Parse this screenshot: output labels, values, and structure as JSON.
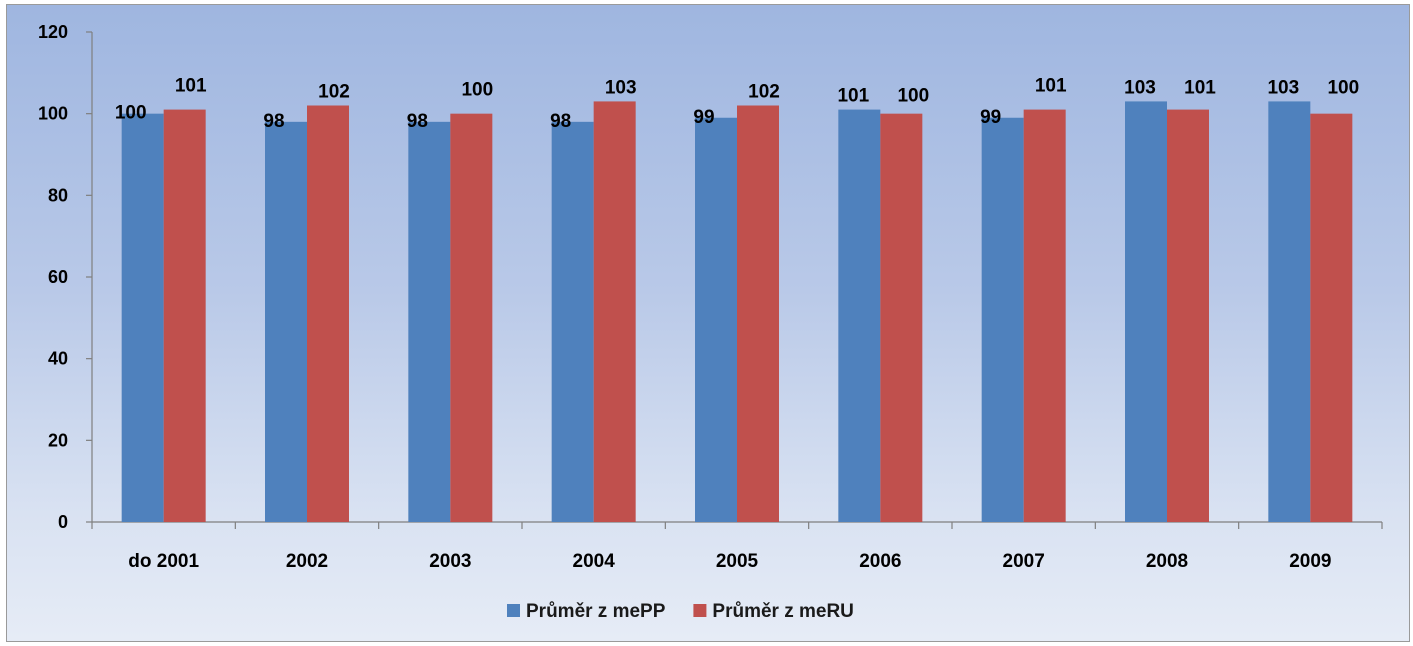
{
  "chart_data": {
    "type": "bar",
    "categories": [
      "do 2001",
      "2002",
      "2003",
      "2004",
      "2005",
      "2006",
      "2007",
      "2008",
      "2009"
    ],
    "series": [
      {
        "name": "Průměr z mePP",
        "values": [
          100,
          98,
          98,
          98,
          99,
          101,
          99,
          103,
          103
        ],
        "color": "#4f81bd"
      },
      {
        "name": "Průměr z meRU",
        "values": [
          101,
          102,
          100,
          103,
          102,
          100,
          101,
          101,
          100
        ],
        "color": "#c0504d"
      }
    ],
    "ylim": [
      0,
      120
    ],
    "yticks": [
      0,
      20,
      40,
      60,
      80,
      100,
      120
    ],
    "grid": false,
    "legend_position": "bottom",
    "data_labels": true
  }
}
